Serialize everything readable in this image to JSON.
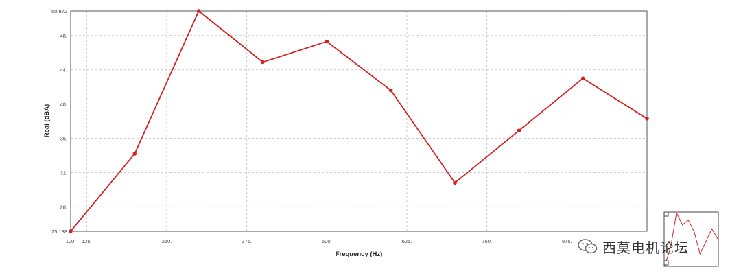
{
  "chart_data": {
    "type": "line",
    "title": "",
    "xlabel": "Frequency (Hz)",
    "ylabel": "Real (dBA)",
    "xlim": [
      100,
      1000
    ],
    "ylim": [
      25.138,
      50.872
    ],
    "x_ticks": [
      "100.",
      "125.",
      "250.",
      "375.",
      "500.",
      "625.",
      "750.",
      "875."
    ],
    "x_tick_values": [
      100,
      125,
      250,
      375,
      500,
      625,
      750,
      875
    ],
    "y_ticks": [
      "25.138",
      "28.",
      "32.",
      "36.",
      "40.",
      "44.",
      "48.",
      "50.872"
    ],
    "y_tick_values": [
      25.138,
      28,
      32,
      36,
      40,
      44,
      48,
      50.872
    ],
    "grid": true,
    "series": [
      {
        "color": "#d42020",
        "x": [
          100,
          200,
          300,
          400,
          500,
          600,
          700,
          800,
          900,
          1000
        ],
        "y": [
          25.138,
          34.2,
          50.872,
          44.9,
          47.3,
          41.6,
          30.8,
          36.9,
          43.0,
          38.3
        ]
      }
    ]
  },
  "watermark": {
    "text": "西莫电机论坛"
  }
}
